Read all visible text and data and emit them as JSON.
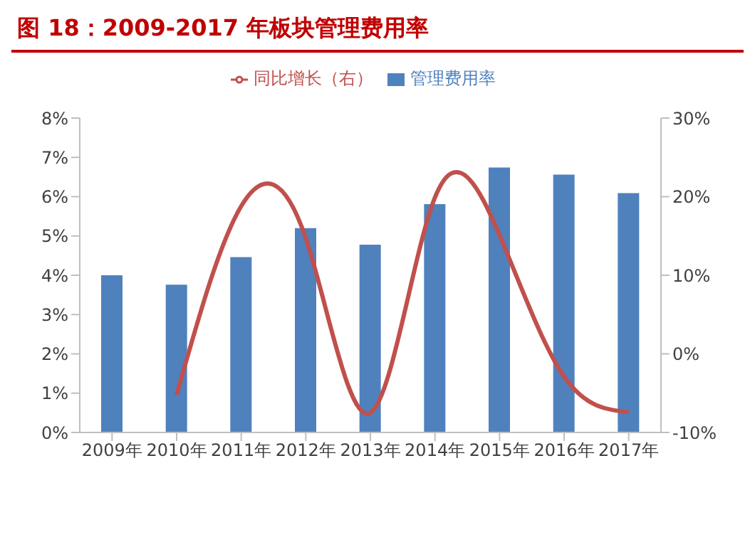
{
  "chart_data": {
    "type": "bar",
    "title": "图 18：2009-2017 年板块管理费用率",
    "categories": [
      "2009年",
      "2010年",
      "2011年",
      "2012年",
      "2013年",
      "2014年",
      "2015年",
      "2016年",
      "2017年"
    ],
    "series": [
      {
        "name": "管理费用率",
        "color": "#4f81bd",
        "values": [
          4.0,
          3.76,
          4.46,
          5.2,
          4.78,
          5.81,
          6.74,
          6.56,
          6.09
        ]
      },
      {
        "name": "同比增长（右）",
        "type": "line",
        "axis": "y2",
        "color": "#c0504d",
        "values": [
          null,
          -5.2,
          18.8,
          14.7,
          -7.5,
          19.9,
          15.1,
          -2.9,
          -7.4
        ]
      }
    ],
    "ylim": [
      0,
      8
    ],
    "yticks": [
      {
        "value": 0,
        "label": "0%"
      },
      {
        "value": 1,
        "label": "1%"
      },
      {
        "value": 2,
        "label": "2%"
      },
      {
        "value": 3,
        "label": "3%"
      },
      {
        "value": 4,
        "label": "4%"
      },
      {
        "value": 5,
        "label": "5%"
      },
      {
        "value": 6,
        "label": "6%"
      },
      {
        "value": 7,
        "label": "7%"
      },
      {
        "value": 8,
        "label": "8%"
      }
    ],
    "y2lim": [
      -10,
      30
    ],
    "y2ticks": [
      {
        "value": -10,
        "label": "-10%"
      },
      {
        "value": 0,
        "label": "0%"
      },
      {
        "value": 10,
        "label": "10%"
      },
      {
        "value": 20,
        "label": "20%"
      },
      {
        "value": 30,
        "label": "30%"
      }
    ],
    "legend": "top",
    "grid": false,
    "marker": "none"
  }
}
